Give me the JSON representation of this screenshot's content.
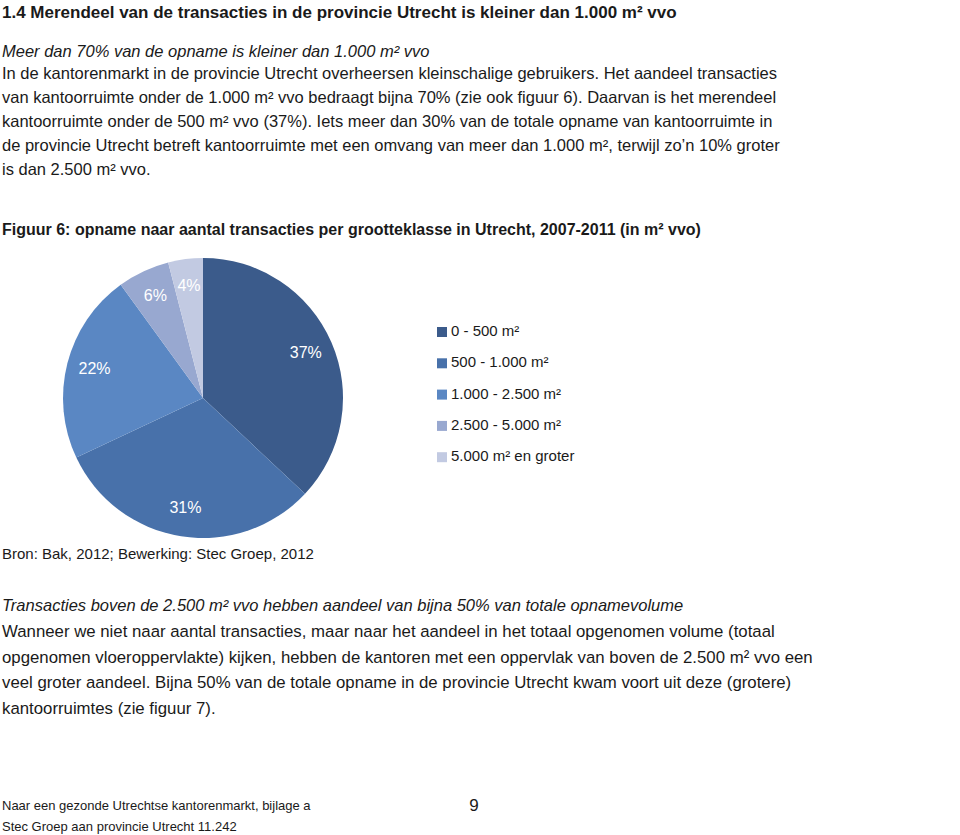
{
  "document": {
    "heading": "1.4 Merendeel van de transacties in de provincie Utrecht is kleiner dan 1.000 m² vvo",
    "subheading_1": "Meer dan 70% van de opname is kleiner dan 1.000 m² vvo",
    "paragraph_1": {
      "lines": [
        "In de kantorenmarkt in de provincie Utrecht overheersen kleinschalige gebruikers. Het aandeel transacties",
        "van kantoorruimte onder de 1.000 m² vvo bedraagt bijna 70% (zie ook figuur 6). Daarvan is het merendeel",
        "kantoorruimte onder de 500 m² vvo (37%). Iets meer dan 30% van de totale opname van  kantoorruimte in",
        "de provincie Utrecht betreft kantoorruimte met een omvang van meer dan 1.000 m², terwijl zo’n 10% groter",
        "is dan 2.500 m² vvo."
      ]
    },
    "source": "Bron: Bak, 2012; Bewerking: Stec Groep, 2012",
    "subheading_2": "Transacties boven de 2.500 m² vvo hebben aandeel van bijna 50% van totale opnamevolume",
    "paragraph_2": {
      "lines": [
        "Wanneer we niet naar aantal transacties, maar naar het aandeel in het totaal opgenomen volume (totaal",
        "opgenomen vloeroppervlakte) kijken, hebben de kantoren met een oppervlak van boven de 2.500 m² vvo een",
        "veel groter aandeel. Bijna 50% van de totale opname in de provincie Utrecht kwam voort uit deze (grotere)",
        "kantoorruimtes (zie figuur 7)."
      ]
    },
    "footer": {
      "line_1": "Naar een gezonde Utrechtse kantorenmarkt, bijlage a",
      "line_2": "Stec Groep aan provincie Utrecht 11.242",
      "page_number": "9"
    }
  },
  "chart_data": {
    "type": "pie",
    "title": "Figuur 6: opname naar aantal transacties per grootteklasse in Utrecht, 2007-2011 (in m² vvo)",
    "categories": [
      "0 - 500 m²",
      "500 - 1.000 m²",
      "1.000 - 2.500 m²",
      "2.500 - 5.000 m²",
      "5.000 m² en groter"
    ],
    "values": [
      37,
      31,
      22,
      6,
      4
    ],
    "value_labels": [
      "37%",
      "31%",
      "22%",
      "6%",
      "4%"
    ],
    "colors": [
      "#3b5b8b",
      "#4871aa",
      "#5a87c3",
      "#98a8d0",
      "#c2cae2"
    ],
    "data_labels": true,
    "legend": "right"
  }
}
